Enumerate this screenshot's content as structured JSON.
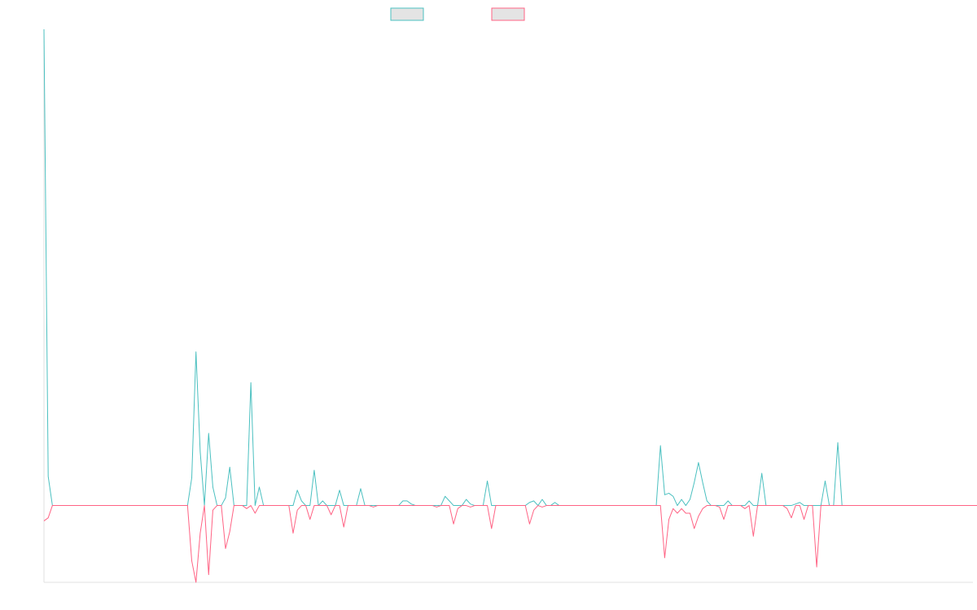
{
  "chart_data": {
    "type": "line",
    "title": "",
    "xlabel": "",
    "ylabel": "",
    "legend_position": "top",
    "grid": false,
    "x_range": [
      0,
      220
    ],
    "ylim": [
      -100,
      620
    ],
    "series": [
      {
        "name": "",
        "color": "#4bc0c0",
        "fill": "#e4e4e4",
        "values": [
          620,
          38,
          0,
          0,
          0,
          0,
          0,
          0,
          0,
          0,
          0,
          0,
          0,
          0,
          0,
          0,
          0,
          0,
          0,
          0,
          0,
          0,
          0,
          0,
          0,
          0,
          0,
          0,
          0,
          0,
          0,
          0,
          0,
          0,
          0,
          36,
          200,
          70,
          0,
          94,
          24,
          0,
          0,
          10,
          50,
          0,
          0,
          0,
          0,
          160,
          0,
          24,
          0,
          0,
          0,
          0,
          0,
          0,
          0,
          0,
          20,
          6,
          0,
          0,
          46,
          0,
          6,
          0,
          0,
          0,
          20,
          0,
          0,
          0,
          0,
          22,
          0,
          0,
          0,
          0,
          0,
          0,
          0,
          0,
          0,
          6,
          6,
          2,
          0,
          0,
          0,
          0,
          0,
          0,
          0,
          12,
          6,
          0,
          0,
          0,
          8,
          2,
          0,
          0,
          0,
          32,
          0,
          0,
          0,
          0,
          0,
          0,
          0,
          0,
          0,
          4,
          6,
          0,
          8,
          0,
          0,
          4,
          0,
          0,
          0,
          0,
          0,
          0,
          0,
          0,
          0,
          0,
          0,
          0,
          0,
          0,
          0,
          0,
          0,
          0,
          0,
          0,
          0,
          0,
          0,
          0,
          78,
          14,
          16,
          12,
          0,
          8,
          0,
          8,
          30,
          56,
          30,
          6,
          0,
          0,
          0,
          0,
          6,
          0,
          0,
          0,
          0,
          6,
          0,
          0,
          42,
          0,
          0,
          0,
          0,
          0,
          0,
          0,
          2,
          4,
          0,
          0,
          0,
          0,
          0,
          32,
          0,
          0,
          82,
          0,
          0,
          0,
          0,
          0,
          0,
          0,
          0,
          0,
          0,
          0,
          0,
          0,
          0,
          0,
          0,
          0,
          0,
          0,
          0,
          0,
          0,
          0,
          0,
          0,
          0,
          0,
          0,
          0,
          0,
          0,
          0,
          0,
          0,
          0,
          0,
          0,
          0,
          0,
          0,
          0,
          0,
          0,
          0,
          0,
          0,
          0,
          0,
          0,
          0,
          0,
          0,
          0,
          0,
          0,
          0,
          0,
          0,
          0,
          0,
          0,
          0,
          0,
          0,
          0,
          0,
          0,
          0,
          0,
          0,
          0,
          0,
          0,
          0,
          0,
          0,
          0,
          0,
          0,
          0,
          0,
          0,
          0,
          0,
          0,
          0,
          0,
          0,
          12,
          0,
          0,
          0,
          0,
          0,
          0,
          0,
          0,
          0,
          0,
          0,
          0,
          0,
          0,
          0
        ]
      },
      {
        "name": "",
        "color": "#ff6384",
        "fill": "#e4e4e4",
        "values": [
          -20,
          -16,
          0,
          0,
          0,
          0,
          0,
          0,
          0,
          0,
          0,
          0,
          0,
          0,
          0,
          0,
          0,
          0,
          0,
          0,
          0,
          0,
          0,
          0,
          0,
          0,
          0,
          0,
          0,
          0,
          0,
          0,
          0,
          0,
          0,
          -72,
          -100,
          -36,
          0,
          -90,
          -6,
          0,
          0,
          -56,
          -34,
          0,
          0,
          0,
          -4,
          0,
          -10,
          0,
          0,
          0,
          0,
          0,
          0,
          0,
          0,
          -36,
          -6,
          0,
          0,
          -18,
          0,
          0,
          0,
          0,
          -12,
          0,
          0,
          -28,
          0,
          0,
          0,
          0,
          0,
          0,
          -2,
          0,
          0,
          0,
          0,
          0,
          0,
          0,
          0,
          0,
          0,
          0,
          0,
          0,
          0,
          -2,
          0,
          0,
          0,
          -24,
          -4,
          0,
          0,
          -2,
          0,
          0,
          0,
          0,
          -30,
          0,
          0,
          0,
          0,
          0,
          0,
          0,
          0,
          -24,
          -6,
          0,
          -2,
          0,
          0,
          0,
          0,
          0,
          0,
          0,
          0,
          0,
          0,
          0,
          0,
          0,
          0,
          0,
          0,
          0,
          0,
          0,
          0,
          0,
          0,
          0,
          0,
          0,
          0,
          0,
          0,
          -68,
          -18,
          -4,
          -10,
          -4,
          -10,
          -10,
          -30,
          -14,
          -4,
          0,
          0,
          0,
          -2,
          -18,
          0,
          0,
          0,
          0,
          -4,
          0,
          -40,
          0,
          0,
          0,
          0,
          0,
          0,
          0,
          -4,
          -16,
          0,
          0,
          -18,
          0,
          0,
          -80,
          0,
          0,
          0,
          0,
          0,
          0,
          0,
          0,
          0,
          0,
          0,
          0,
          0,
          0,
          0,
          0,
          0,
          0,
          0,
          0,
          0,
          0,
          0,
          0,
          0,
          0,
          0,
          0,
          0,
          0,
          0,
          0,
          0,
          0,
          0,
          0,
          0,
          0,
          0,
          0,
          0,
          0,
          0,
          0,
          0,
          0,
          0,
          0,
          0,
          0,
          0,
          0,
          0,
          0,
          0,
          0,
          0,
          0,
          0,
          0,
          0,
          0,
          0,
          0,
          0,
          0,
          0,
          0,
          0,
          0,
          0,
          0,
          0,
          0,
          0,
          0,
          0,
          0,
          0,
          0,
          0,
          0,
          0,
          0,
          0,
          0,
          0,
          -4,
          0,
          0,
          0,
          0,
          0,
          0,
          0,
          0,
          0,
          0,
          0,
          0,
          0,
          0,
          0
        ]
      }
    ]
  }
}
